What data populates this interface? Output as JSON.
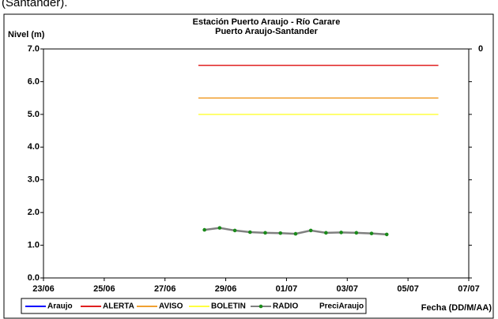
{
  "caption": "(Santander).",
  "chart_data": {
    "type": "line",
    "title": "Estación Puerto Araujo - Río Carare",
    "subtitle": "Puerto Araujo-Santander",
    "y_label": "Nivel (m)",
    "x_label": "Fecha (DD/M/AA)",
    "xlim": [
      0,
      14
    ],
    "xticks": [
      {
        "value": 0,
        "label": "23/06"
      },
      {
        "value": 2,
        "label": "25/06"
      },
      {
        "value": 4,
        "label": "27/06"
      },
      {
        "value": 6,
        "label": "29/06"
      },
      {
        "value": 8,
        "label": "01/07"
      },
      {
        "value": 10,
        "label": "03/07"
      },
      {
        "value": 12,
        "label": "05/07"
      },
      {
        "value": 14,
        "label": "07/07"
      }
    ],
    "ylim": [
      0,
      7
    ],
    "yticks": [
      {
        "value": 0,
        "label": "0.0"
      },
      {
        "value": 1,
        "label": "1.0"
      },
      {
        "value": 2,
        "label": "2.0"
      },
      {
        "value": 3,
        "label": "3.0"
      },
      {
        "value": 4,
        "label": "4.0"
      },
      {
        "value": 5,
        "label": "5.0"
      },
      {
        "value": 6,
        "label": "6.0"
      },
      {
        "value": 7,
        "label": "7.0"
      }
    ],
    "y2ticks": [
      0
    ],
    "y2_inverted": true,
    "grid": false,
    "legend": "bottom",
    "series": [
      {
        "name": "Araujo",
        "color": "#0000ff",
        "x": [],
        "values": []
      },
      {
        "name": "ALERTA",
        "color": "#e02020",
        "x": [
          5.1,
          13.0
        ],
        "values": [
          6.5,
          6.5
        ]
      },
      {
        "name": "AVISO",
        "color": "#f0a030",
        "x": [
          5.1,
          13.0
        ],
        "values": [
          5.5,
          5.5
        ]
      },
      {
        "name": "BOLETIN",
        "color": "#ffff40",
        "x": [
          5.1,
          13.0
        ],
        "values": [
          5.0,
          5.0
        ]
      },
      {
        "name": "RADIO",
        "color": "#808080",
        "marker_color": "#1a8a1a",
        "x": [
          5.3,
          5.8,
          6.3,
          6.8,
          7.3,
          7.8,
          8.3,
          8.8,
          9.3,
          9.8,
          10.3,
          10.8,
          11.3
        ],
        "values": [
          1.47,
          1.53,
          1.45,
          1.4,
          1.38,
          1.37,
          1.35,
          1.45,
          1.38,
          1.39,
          1.38,
          1.36,
          1.33
        ]
      },
      {
        "name": "PreciAraujo",
        "color": "#ffffff",
        "x": [],
        "values": []
      }
    ]
  }
}
